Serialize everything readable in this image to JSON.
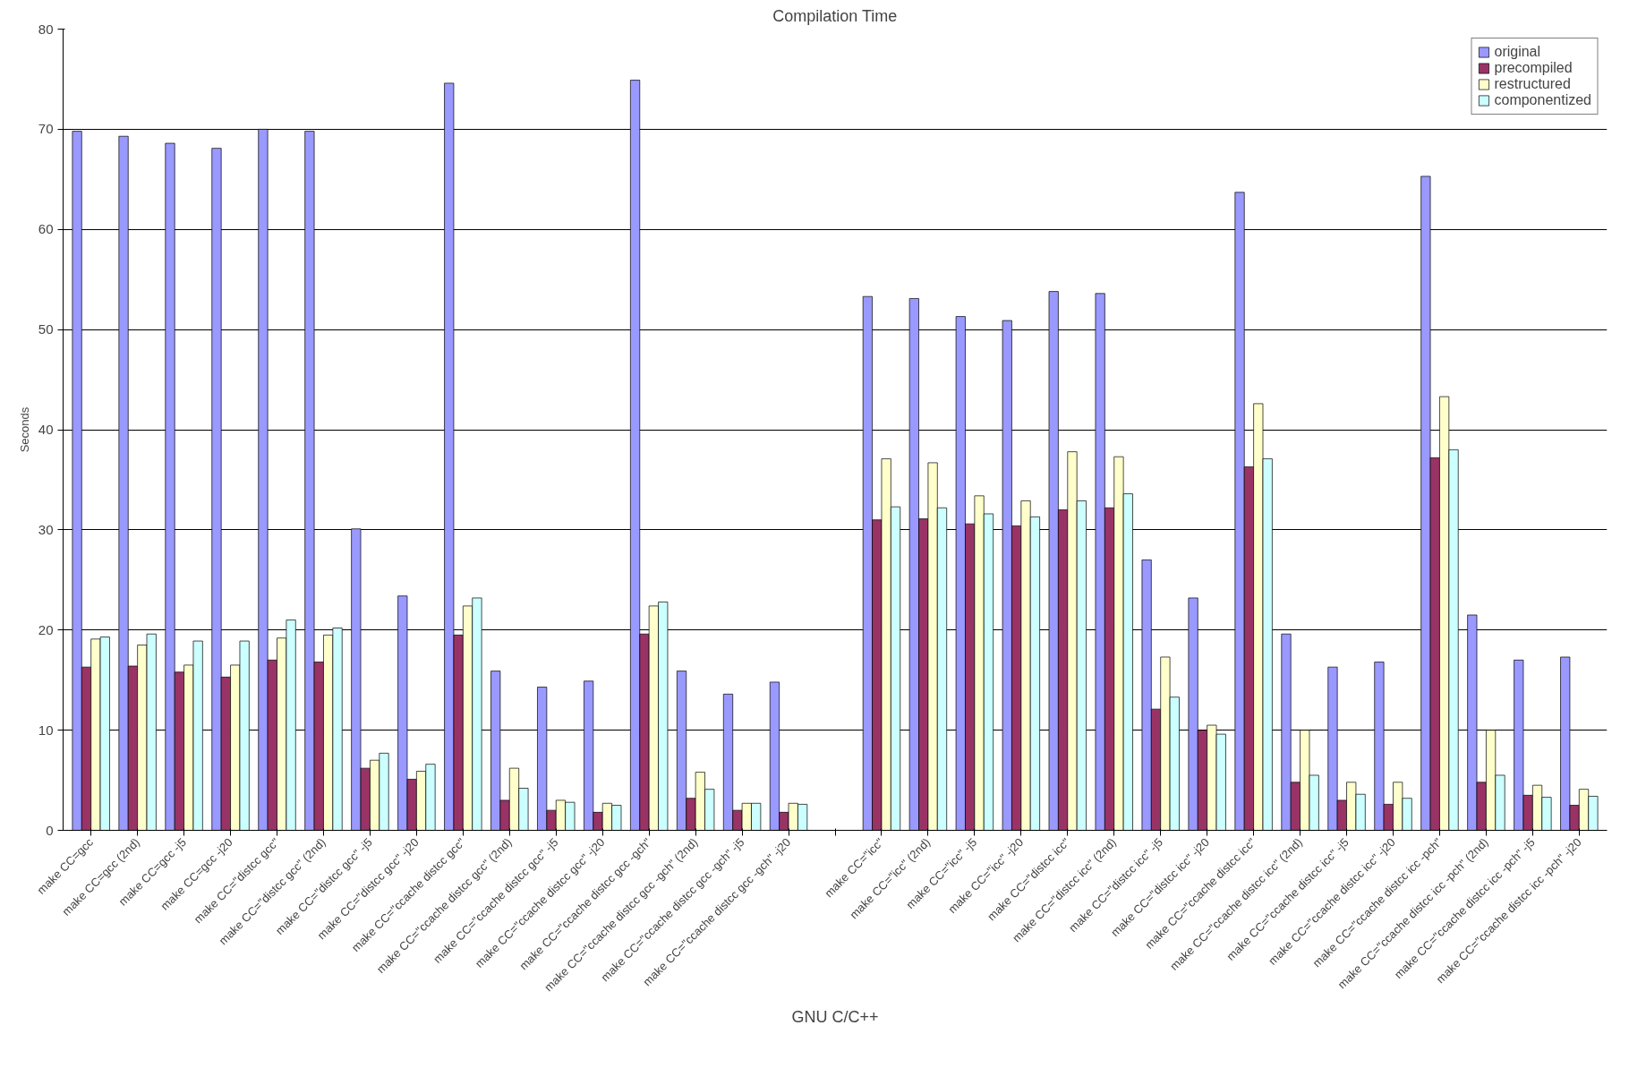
{
  "chart_data": {
    "type": "bar",
    "title": "Compilation Time",
    "ylabel": "Seconds",
    "categories": [
      "make CC=gcc",
      "make CC=gcc (2nd)",
      "make CC=gcc -j5",
      "make CC=gcc -j20",
      "make CC=\"distcc gcc\"",
      "make CC=\"distcc gcc\" (2nd)",
      "make CC=\"distcc gcc\" -j5",
      "make CC=\"distcc gcc\" -j20",
      "make CC=\"ccache distcc gcc\"",
      "make CC=\"ccache distcc gcc\" (2nd)",
      "make CC=\"ccache distcc gcc\" -j5",
      "make CC=\"ccache distcc gcc\" -j20",
      "make CC=\"ccache distcc gcc -gch\"",
      "make CC=\"ccache distcc gcc -gch\" (2nd)",
      "make CC=\"ccache distcc gcc -gch\" -j5",
      "make CC=\"ccache distcc gcc -gch\" -j20",
      null,
      "make CC=\"icc\"",
      "make CC=\"icc\" (2nd)",
      "make CC=\"icc\" -j5",
      "make CC=\"icc\" -j20",
      "make CC=\"distcc icc\"",
      "make CC=\"distcc icc\" (2nd)",
      "make CC=\"distcc icc\" -j5",
      "make CC=\"distcc icc\" -j20",
      "make CC=\"ccache distcc icc\"",
      "make CC=\"ccache distcc icc\" (2nd)",
      "make CC=\"ccache distcc icc\" -j5",
      "make CC=\"ccache distcc icc\" -j20",
      "make CC=\"ccache distcc icc -pch\"",
      "make CC=\"ccache distcc icc -pch\" (2nd)",
      "make CC=\"ccache distcc icc -pch\" -j5",
      "make CC=\"ccache distcc icc -pch\" -j20"
    ],
    "series": [
      {
        "name": "original",
        "color": "#9999ff",
        "values": [
          69.8,
          69.3,
          68.6,
          68.1,
          70,
          69.8,
          30.1,
          23.4,
          74.6,
          15.9,
          14.3,
          14.9,
          74.9,
          15.9,
          13.6,
          14.8,
          null,
          53.3,
          53.1,
          51.3,
          50.9,
          53.8,
          53.6,
          27.0,
          23.2,
          63.7,
          19.6,
          16.3,
          16.8,
          65.3,
          21.5,
          17.0,
          17.3
        ]
      },
      {
        "name": "precompiled",
        "color": "#993366",
        "values": [
          16.3,
          16.4,
          15.8,
          15.3,
          17,
          16.8,
          6.2,
          5.1,
          19.5,
          3.0,
          2.0,
          1.8,
          19.6,
          3.2,
          2.0,
          1.8,
          null,
          31.0,
          31.1,
          30.6,
          30.4,
          32.0,
          32.2,
          12.1,
          10.0,
          36.3,
          4.8,
          3.0,
          2.6,
          37.2,
          4.8,
          3.5,
          2.5
        ]
      },
      {
        "name": "restructured",
        "color": "#ffffcc",
        "values": [
          19.1,
          18.5,
          16.5,
          16.5,
          19.2,
          19.5,
          7.0,
          5.9,
          22.4,
          6.2,
          3.0,
          2.7,
          22.4,
          5.8,
          2.7,
          2.7,
          null,
          37.1,
          36.7,
          33.4,
          32.9,
          37.8,
          37.3,
          17.3,
          10.5,
          42.6,
          10.0,
          4.8,
          4.8,
          43.3,
          10.0,
          4.5,
          4.1
        ]
      },
      {
        "name": "componentized",
        "color": "#ccffff",
        "values": [
          19.3,
          19.6,
          18.9,
          18.9,
          21,
          20.2,
          7.7,
          6.6,
          23.2,
          4.2,
          2.8,
          2.5,
          22.8,
          4.1,
          2.7,
          2.6,
          null,
          32.3,
          32.2,
          31.6,
          31.3,
          32.9,
          33.6,
          13.3,
          9.6,
          37.1,
          5.5,
          3.6,
          3.2,
          38.0,
          5.5,
          3.3,
          3.4
        ]
      }
    ],
    "annotations": [
      "GNU C/C++"
    ],
    "ylim": [
      0,
      80
    ],
    "yticks": [
      0,
      10,
      20,
      30,
      40,
      50,
      60,
      70,
      80
    ],
    "grid": "y",
    "legend": "top right"
  }
}
